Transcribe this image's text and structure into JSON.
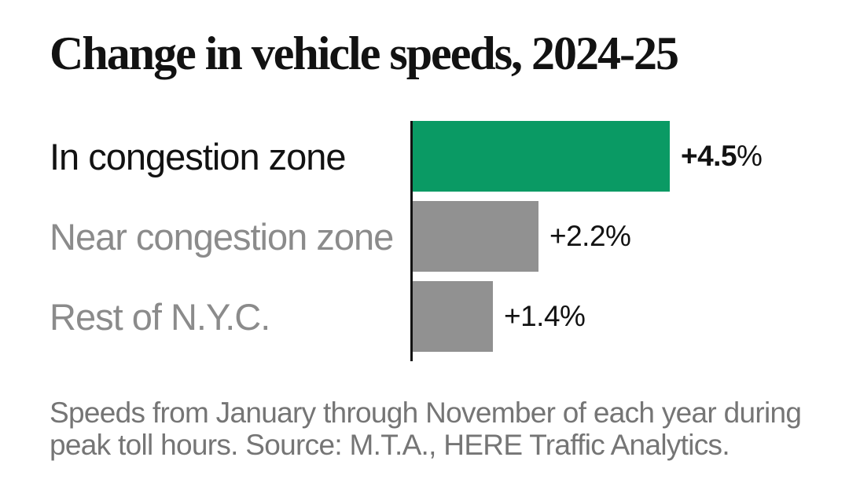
{
  "title": "Change in vehicle speeds, 2024-25",
  "chart_data": {
    "type": "bar",
    "orientation": "horizontal",
    "title": "Change in vehicle speeds, 2024-25",
    "categories": [
      "In congestion zone",
      "Near congestion zone",
      "Rest of N.Y.C."
    ],
    "values": [
      4.5,
      2.2,
      1.4
    ],
    "value_labels": [
      "+4.5%",
      "+2.2%",
      "+1.4%"
    ],
    "units": "percent change in vehicle speed",
    "xlim": [
      0,
      4.5
    ],
    "grid": false,
    "legend": null,
    "highlight_index": 0,
    "colors": {
      "highlight_bar": "#0a9a64",
      "default_bar": "#919191",
      "highlight_label": "#121212",
      "muted_label": "#8b8b8b",
      "axis": "#121212",
      "value_text": "#121212"
    }
  },
  "footnote": {
    "line1": "Speeds from January through November of each year during",
    "line2": "peak toll hours. Source: M.T.A., HERE Traffic Analytics."
  }
}
